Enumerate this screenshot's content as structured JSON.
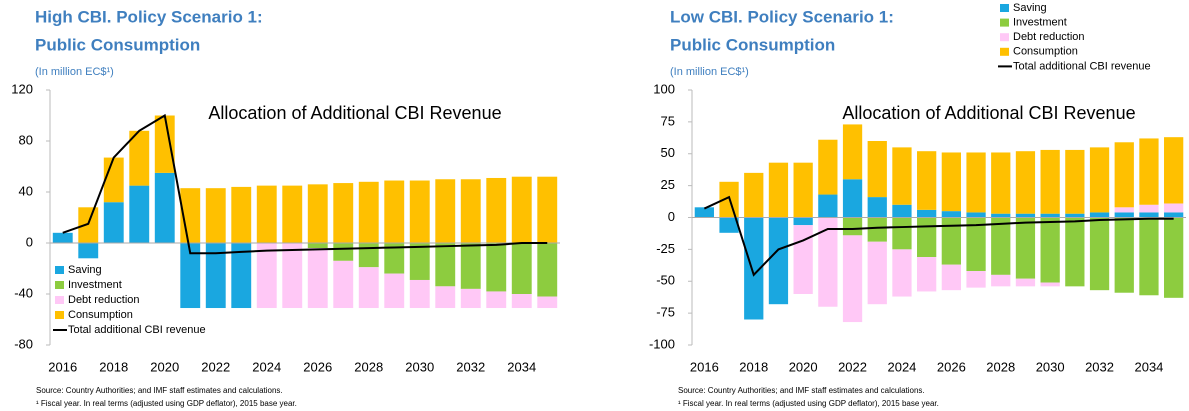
{
  "chart_data": [
    {
      "type": "bar",
      "title": [
        "High CBI. Policy Scenario 1:",
        "Public Consumption"
      ],
      "subtitle": "(In million EC$¹)",
      "annotation": "Allocation of Additional CBI Revenue",
      "source": "Source: Country Authorities; and IMF staff estimates and calculations.",
      "note": "¹ Fiscal year. In real terms (adjusted using GDP deflator), 2015 base year.",
      "categories": [
        "2016",
        null,
        "2018",
        null,
        "2020",
        null,
        "2022",
        null,
        "2024",
        null,
        "2026",
        null,
        "2028",
        null,
        "2030",
        null,
        "2032",
        null,
        "2034",
        null
      ],
      "ylim": [
        -80,
        120
      ],
      "yticks": [
        -80,
        -40,
        0,
        40,
        80,
        120
      ],
      "legend": "lower left",
      "series": [
        {
          "name": "Saving",
          "color": "#1aa7e0",
          "values": [
            8,
            -12,
            32,
            45,
            55,
            -51,
            -51,
            -51,
            0,
            0,
            0,
            0,
            0,
            0,
            0,
            0,
            0,
            0,
            0,
            0
          ]
        },
        {
          "name": "Investment",
          "color": "#8dcc3f",
          "values": [
            0,
            0,
            0,
            0,
            0,
            0,
            0,
            0,
            0,
            0,
            -4,
            -14,
            -19,
            -24,
            -29,
            -34,
            -36,
            -38,
            -40,
            -42
          ]
        },
        {
          "name": "Debt reduction",
          "color": "#ffc8f6",
          "values": [
            0,
            0,
            0,
            0,
            0,
            0,
            0,
            0,
            -51,
            -51,
            -47,
            -37,
            -32,
            -27,
            -22,
            -17,
            -15,
            -13,
            -11,
            -9
          ]
        },
        {
          "name": "Consumption",
          "color": "#ffc000",
          "values": [
            0,
            28,
            35,
            43,
            45,
            43,
            43,
            44,
            45,
            45,
            46,
            47,
            48,
            49,
            49,
            50,
            50,
            51,
            52,
            52
          ]
        },
        {
          "name": "Total additional CBI revenue",
          "type": "line",
          "color": "#000000",
          "values": [
            8,
            15,
            67,
            88,
            100,
            -8,
            -8,
            -7,
            -6,
            -5.5,
            -5,
            -4.5,
            -4,
            -3.5,
            -3,
            -2.5,
            -2,
            -1.5,
            0,
            0
          ]
        }
      ]
    },
    {
      "type": "bar",
      "title": [
        "Low CBI. Policy Scenario 1:",
        "Public Consumption"
      ],
      "subtitle": "(In million EC$¹)",
      "annotation": "Allocation of Additional CBI Revenue",
      "source": "Source: Country Authorities; and IMF staff estimates and calculations.",
      "note": "¹ Fiscal year. In real terms (adjusted using GDP deflator), 2015 base year.",
      "categories": [
        "2016",
        null,
        "2018",
        null,
        "2020",
        null,
        "2022",
        null,
        "2024",
        null,
        "2026",
        null,
        "2028",
        null,
        "2030",
        null,
        "2032",
        null,
        "2034",
        null
      ],
      "ylim": [
        -100,
        100
      ],
      "yticks": [
        -100,
        -75,
        -50,
        -25,
        0,
        25,
        50,
        75,
        100
      ],
      "legend": "upper right",
      "series": [
        {
          "name": "Saving",
          "color": "#1aa7e0",
          "values": [
            8,
            -12,
            -80,
            -68,
            -6,
            18,
            30,
            16,
            10,
            6,
            5,
            4,
            3,
            3,
            3,
            3,
            4,
            4,
            4,
            4
          ]
        },
        {
          "name": "Investment",
          "color": "#8dcc3f",
          "values": [
            0,
            0,
            0,
            0,
            0,
            0,
            -14,
            -19,
            -25,
            -31,
            -37,
            -42,
            -45,
            -48,
            -51,
            -54,
            -57,
            -59,
            -61,
            -63
          ]
        },
        {
          "name": "Debt reduction",
          "color": "#ffc8f6",
          "values": [
            0,
            0,
            0,
            0,
            -54,
            -70,
            -68,
            -49,
            -37,
            -27,
            -20,
            -13,
            -9,
            -6,
            -3,
            0,
            0,
            4,
            6,
            7
          ]
        },
        {
          "name": "Consumption",
          "color": "#ffc000",
          "values": [
            0,
            28,
            35,
            43,
            43,
            43,
            43,
            44,
            45,
            46,
            46,
            47,
            48,
            49,
            50,
            50,
            51,
            51,
            52,
            52
          ]
        },
        {
          "name": "Total additional CBI revenue",
          "type": "line",
          "color": "#000000",
          "values": [
            7,
            16,
            -45,
            -25,
            -18,
            -9,
            -9,
            -8,
            -7.5,
            -7,
            -6.5,
            -6,
            -5,
            -4,
            -3.5,
            -3,
            -2,
            -1.5,
            -1,
            -1
          ]
        }
      ]
    }
  ]
}
